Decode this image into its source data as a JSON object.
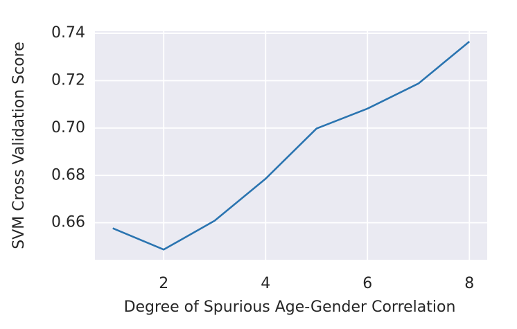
{
  "chart_data": {
    "type": "line",
    "xlabel": "Degree of Spurious Age-Gender Correlation",
    "ylabel": "SVM Cross Validation Score",
    "x": [
      1,
      2,
      3,
      4,
      5,
      6,
      7,
      8
    ],
    "series": [
      {
        "color": "#2a74b0",
        "values": [
          0.6577,
          0.6487,
          0.6609,
          0.6786,
          0.6998,
          0.7082,
          0.7188,
          0.7365
        ]
      }
    ],
    "xlim": [
      0.65,
      8.35
    ],
    "xticks": [
      2,
      4,
      6,
      8
    ],
    "ylim": [
      0.6444,
      0.7409
    ],
    "yticks": [
      0.66,
      0.68,
      {
        "value": 0.7,
        "label": "0.70"
      },
      0.72,
      0.74
    ],
    "grid": true
  }
}
